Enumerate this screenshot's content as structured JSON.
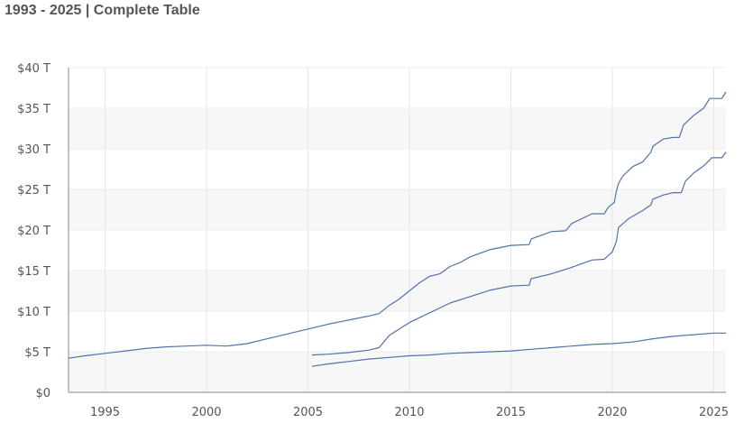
{
  "header": {
    "title": "1993 - 2025 | Complete Table"
  },
  "chart_data": {
    "type": "line",
    "title": "1993 - 2025 | Complete Table",
    "xlabel": "",
    "ylabel": "",
    "xlim": [
      1993.2,
      2025.6
    ],
    "ylim": [
      0,
      40
    ],
    "grid": true,
    "x_ticks": [
      {
        "value": 1995,
        "label": "1995"
      },
      {
        "value": 2000,
        "label": "2000"
      },
      {
        "value": 2005,
        "label": "2005"
      },
      {
        "value": 2010,
        "label": "2010"
      },
      {
        "value": 2015,
        "label": "2015"
      },
      {
        "value": 2020,
        "label": "2020"
      },
      {
        "value": 2025,
        "label": "2025"
      }
    ],
    "y_ticks": [
      {
        "value": 0,
        "label": "$0"
      },
      {
        "value": 5,
        "label": "$5 T"
      },
      {
        "value": 10,
        "label": "$10 T"
      },
      {
        "value": 15,
        "label": "$15 T"
      },
      {
        "value": 20,
        "label": "$20 T"
      },
      {
        "value": 25,
        "label": "$25 T"
      },
      {
        "value": 30,
        "label": "$30 T"
      },
      {
        "value": 35,
        "label": "$35 T"
      },
      {
        "value": 40,
        "label": "$40 T"
      }
    ],
    "series": [
      {
        "color": "#4e73ac",
        "points": [
          [
            1993.2,
            4.2
          ],
          [
            1994,
            4.5
          ],
          [
            1995,
            4.8
          ],
          [
            1996,
            5.1
          ],
          [
            1997,
            5.4
          ],
          [
            1998,
            5.6
          ],
          [
            1999,
            5.7
          ],
          [
            2000,
            5.8
          ],
          [
            2001,
            5.7
          ],
          [
            2002,
            6.0
          ],
          [
            2003,
            6.6
          ],
          [
            2004,
            7.2
          ],
          [
            2005,
            7.8
          ],
          [
            2006,
            8.4
          ],
          [
            2007,
            8.9
          ],
          [
            2008,
            9.4
          ],
          [
            2008.5,
            9.7
          ],
          [
            2009,
            10.7
          ],
          [
            2009.5,
            11.5
          ],
          [
            2010,
            12.5
          ],
          [
            2010.5,
            13.5
          ],
          [
            2011,
            14.3
          ],
          [
            2011.5,
            14.6
          ],
          [
            2012,
            15.5
          ],
          [
            2012.5,
            16.0
          ],
          [
            2013,
            16.7
          ],
          [
            2014,
            17.6
          ],
          [
            2015,
            18.1
          ],
          [
            2015.9,
            18.2
          ],
          [
            2016,
            18.9
          ],
          [
            2017,
            19.8
          ],
          [
            2017.7,
            19.9
          ],
          [
            2018,
            20.8
          ],
          [
            2019,
            22.0
          ],
          [
            2019.6,
            22.0
          ],
          [
            2019.8,
            22.8
          ],
          [
            2020.1,
            23.4
          ],
          [
            2020.2,
            24.8
          ],
          [
            2020.3,
            25.7
          ],
          [
            2020.5,
            26.6
          ],
          [
            2021,
            27.8
          ],
          [
            2021.5,
            28.4
          ],
          [
            2021.9,
            29.6
          ],
          [
            2022,
            30.3
          ],
          [
            2022.5,
            31.2
          ],
          [
            2023,
            31.4
          ],
          [
            2023.3,
            31.4
          ],
          [
            2023.5,
            32.9
          ],
          [
            2024,
            34.1
          ],
          [
            2024.5,
            35.0
          ],
          [
            2024.8,
            36.2
          ],
          [
            2025.4,
            36.2
          ],
          [
            2025.6,
            37.0
          ]
        ]
      },
      {
        "color": "#4e73ac",
        "points": [
          [
            2005.2,
            4.6
          ],
          [
            2006,
            4.7
          ],
          [
            2007,
            4.9
          ],
          [
            2008,
            5.2
          ],
          [
            2008.5,
            5.5
          ],
          [
            2009,
            7.0
          ],
          [
            2010,
            8.6
          ],
          [
            2011,
            9.8
          ],
          [
            2012,
            11.0
          ],
          [
            2013,
            11.8
          ],
          [
            2014,
            12.6
          ],
          [
            2015,
            13.1
          ],
          [
            2015.9,
            13.2
          ],
          [
            2016,
            14.0
          ],
          [
            2017,
            14.6
          ],
          [
            2018,
            15.4
          ],
          [
            2019,
            16.3
          ],
          [
            2019.6,
            16.4
          ],
          [
            2020,
            17.3
          ],
          [
            2020.2,
            18.6
          ],
          [
            2020.3,
            20.3
          ],
          [
            2020.8,
            21.4
          ],
          [
            2021.5,
            22.4
          ],
          [
            2021.9,
            23.1
          ],
          [
            2022,
            23.8
          ],
          [
            2022.5,
            24.3
          ],
          [
            2023,
            24.6
          ],
          [
            2023.4,
            24.6
          ],
          [
            2023.6,
            26.0
          ],
          [
            2024,
            27.0
          ],
          [
            2024.5,
            27.9
          ],
          [
            2024.9,
            28.9
          ],
          [
            2025.4,
            28.9
          ],
          [
            2025.6,
            29.6
          ]
        ]
      },
      {
        "color": "#4e73ac",
        "points": [
          [
            2005.2,
            3.2
          ],
          [
            2006,
            3.5
          ],
          [
            2007,
            3.8
          ],
          [
            2008,
            4.1
          ],
          [
            2009,
            4.3
          ],
          [
            2010,
            4.5
          ],
          [
            2011,
            4.6
          ],
          [
            2012,
            4.8
          ],
          [
            2013,
            4.9
          ],
          [
            2014,
            5.0
          ],
          [
            2015,
            5.1
          ],
          [
            2016,
            5.3
          ],
          [
            2017,
            5.5
          ],
          [
            2018,
            5.7
          ],
          [
            2019,
            5.9
          ],
          [
            2020,
            6.0
          ],
          [
            2021,
            6.2
          ],
          [
            2022,
            6.6
          ],
          [
            2023,
            6.9
          ],
          [
            2024,
            7.1
          ],
          [
            2025,
            7.3
          ],
          [
            2025.6,
            7.3
          ]
        ]
      }
    ]
  }
}
